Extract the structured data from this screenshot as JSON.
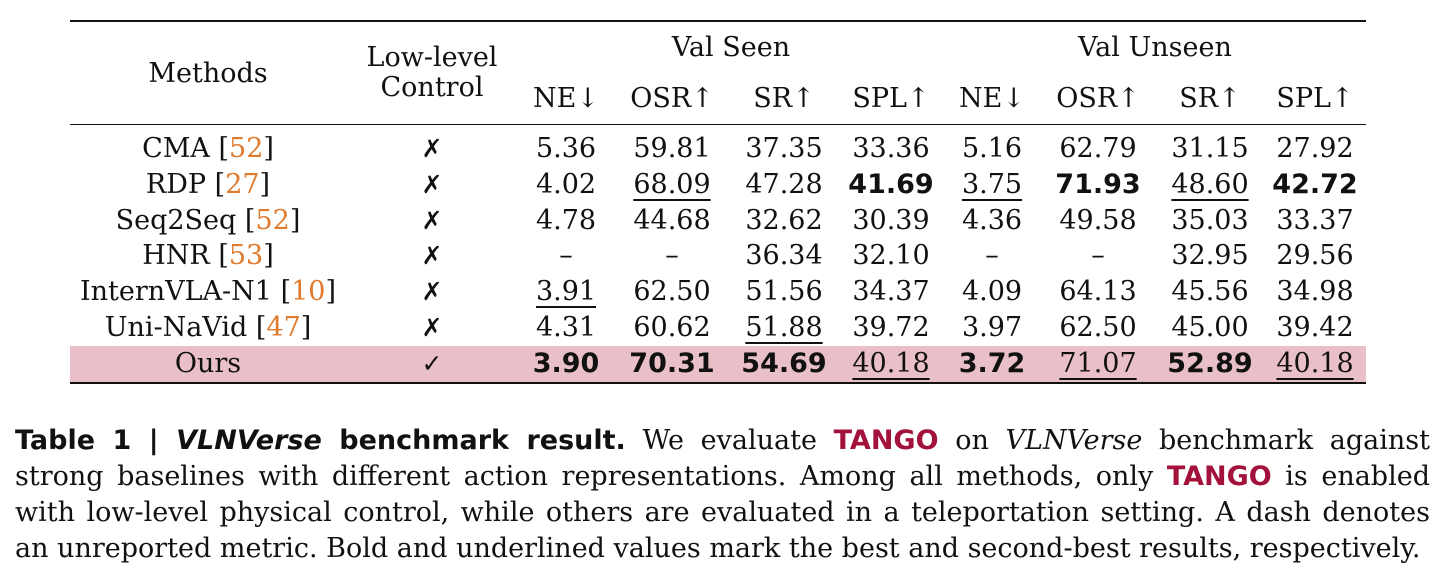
{
  "table": {
    "header": {
      "methods": "Methods",
      "control_line1": "Low-level",
      "control_line2": "Control",
      "group_seen": "Val Seen",
      "group_unseen": "Val Unseen",
      "metrics": [
        "NE↓",
        "OSR↑",
        "SR↑",
        "SPL↑",
        "NE↓",
        "OSR↑",
        "SR↑",
        "SPL↑"
      ]
    },
    "rows": [
      {
        "name": "CMA",
        "ref": "52",
        "control": "✗",
        "values": [
          "5.36",
          "59.81",
          "37.35",
          "33.36",
          "5.16",
          "62.79",
          "31.15",
          "27.92"
        ]
      },
      {
        "name": "RDP",
        "ref": "27",
        "control": "✗",
        "values": [
          "4.02",
          "68.09",
          "47.28",
          "41.69",
          "3.75",
          "71.93",
          "48.60",
          "42.72"
        ]
      },
      {
        "name": "Seq2Seq",
        "ref": "52",
        "control": "✗",
        "values": [
          "4.78",
          "44.68",
          "32.62",
          "30.39",
          "4.36",
          "49.58",
          "35.03",
          "33.37"
        ]
      },
      {
        "name": "HNR",
        "ref": "53",
        "control": "✗",
        "values": [
          "–",
          "–",
          "36.34",
          "32.10",
          "–",
          "–",
          "32.95",
          "29.56"
        ]
      },
      {
        "name": "InternVLA-N1",
        "ref": "10",
        "control": "✗",
        "values": [
          "3.91",
          "62.50",
          "51.56",
          "34.37",
          "4.09",
          "64.13",
          "45.56",
          "34.98"
        ]
      },
      {
        "name": "Uni-NaVid",
        "ref": "47",
        "control": "✗",
        "values": [
          "4.31",
          "60.62",
          "51.88",
          "39.72",
          "3.97",
          "62.50",
          "45.00",
          "39.42"
        ]
      },
      {
        "name": "Ours",
        "ref": "",
        "control": "✓",
        "values": [
          "3.90",
          "70.31",
          "54.69",
          "40.18",
          "3.72",
          "71.07",
          "52.89",
          "40.18"
        ]
      }
    ]
  },
  "caption": {
    "label": "Table 1 | VLNVerse benchmark result.",
    "label_prefix": "Table 1 | ",
    "label_ital": "VLNVerse",
    "label_suffix": " benchmark result.",
    "s1": "We evaluate ",
    "tango": "TANGO",
    "s2": " on ",
    "s2_ital": "VLNVerse",
    "s3": " benchmark against strong baselines with different action representations. Among all methods, only ",
    "s4": " is enabled with low-level physical control, while others are evaluated in a teleportation setting. A dash denotes an unreported metric. Bold and underlined values mark the best and second-best results, respectively."
  }
}
